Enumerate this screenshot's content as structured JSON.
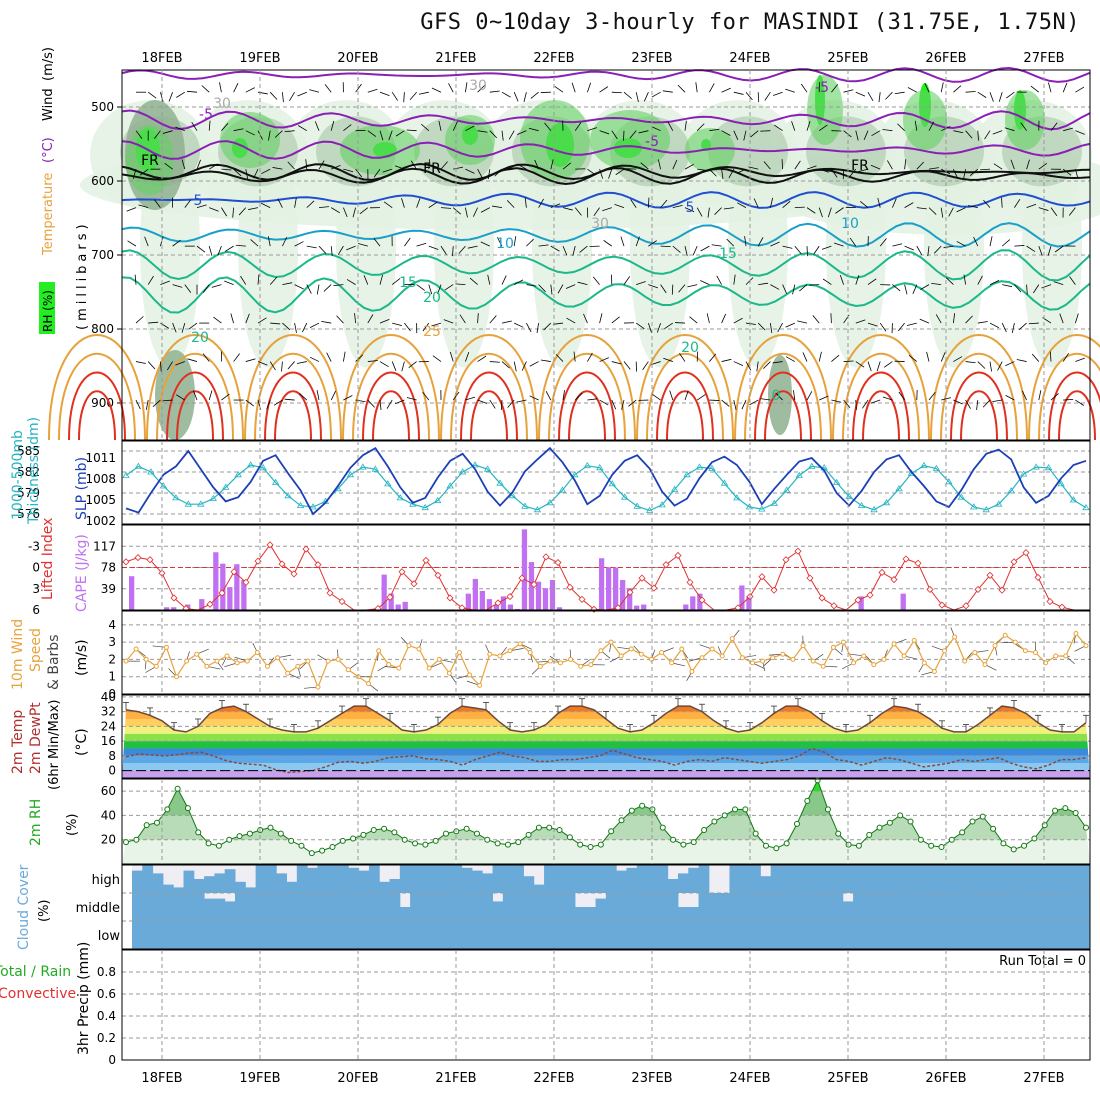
{
  "title": "GFS 0~10day 3-hourly for MASINDI (31.75E, 1.75N)",
  "dates": [
    "18FEB",
    "19FEB",
    "20FEB",
    "21FEB",
    "22FEB",
    "23FEB",
    "24FEB",
    "25FEB",
    "26FEB",
    "27FEB"
  ],
  "colors": {
    "frame": "#000000",
    "grid": "#999999",
    "rh_light": "#e3f1e3",
    "rh_mid": "#b9d3b9",
    "rh_dark": "#8fb08f",
    "rh_bright": "#22ee22",
    "temp_purple": "#8a1fb5",
    "temp_blue": "#1f4fd0",
    "temp_cyan": "#1aa0c8",
    "temp_teal": "#1ab88a",
    "temp_orange": "#e6a23c",
    "temp_red": "#e0301e",
    "slp": "#1c3fb8",
    "thickness": "#26b5c2",
    "li": "#e33030",
    "cape": "#c070f0",
    "wind10": "#e8a33c",
    "rh2m": "#22aa22",
    "cloud": "#6aaad8",
    "precip_green": "#22aa22",
    "precip_red": "#e33030"
  },
  "panel_labels": {
    "upper": {
      "rh": "RH (%)",
      "temperature": "Temperature",
      "temp_unit": "(°C)",
      "wind": "Wind",
      "wind_unit": "(m/s)",
      "pressure": "(millibars)"
    },
    "thickness": {
      "line1": "1000-500mb",
      "line2": "Thickness (dm)",
      "slp": "SLP (mb)"
    },
    "cape": {
      "li": "Lifted Index",
      "cape": "CAPE (J/kg)"
    },
    "wind10": {
      "line1": "10m Wind",
      "line2": "Speed",
      "line3": "& Barbs",
      "unit": "(m/s)"
    },
    "temp2m": {
      "line1": "2m Temp",
      "line2": "2m DewPt",
      "line3": "(6hr Min/Max)",
      "unit": "(°C)"
    },
    "rh2m": {
      "line1": "2m RH",
      "unit": "(%)"
    },
    "cloud": {
      "line1": "Cloud Cover",
      "unit": "(%)",
      "high": "high",
      "middle": "middle",
      "low": "low"
    },
    "precip": {
      "line1": "Total / Rain",
      "line2": "Convective",
      "line3": "3hr Precip",
      "unit": "(mm)",
      "run_total": "Run Total = 0"
    }
  },
  "chart_data": [
    {
      "type": "heatmap",
      "name": "upper-air",
      "y_ticks": [
        "500",
        "600",
        "700",
        "800",
        "900"
      ],
      "ylim": [
        450,
        950
      ],
      "contour_labels": [
        "-5",
        "-5",
        "-5",
        "FR",
        "FR",
        "FR",
        "5",
        "5",
        "10",
        "10",
        "15",
        "15",
        "20",
        "20",
        "20",
        "25",
        "30",
        "30",
        "30",
        "0"
      ],
      "temperature_levels": [
        -5,
        0,
        5,
        10,
        15,
        20,
        25,
        30
      ]
    },
    {
      "type": "line",
      "name": "thickness-slp",
      "y_ticks_left": [
        "585",
        "582",
        "579",
        "576"
      ],
      "y_ticks_right": [
        "1011",
        "1008",
        "1005",
        "1002"
      ],
      "ylim_left": [
        575,
        586
      ],
      "ylim_right": [
        1002,
        1013
      ],
      "series": [
        {
          "name": "SLP (mb)",
          "values": [
            1003.8,
            1003.2,
            1006,
            1008.6,
            1009.8,
            1012,
            1009.4,
            1006.8,
            1004.8,
            1005.4,
            1007.6,
            1010.6,
            1011.4,
            1008.8,
            1006.4,
            1003,
            1004.6,
            1007,
            1009.6,
            1011.4,
            1012.4,
            1009.8,
            1006.8,
            1004.6,
            1005.3,
            1008.2,
            1010.6,
            1011.6,
            1009.4,
            1006.2,
            1004.2,
            1006.1,
            1009.1,
            1010.8,
            1012.4,
            1010.4,
            1007.8,
            1004.4,
            1005.6,
            1008.6,
            1010.6,
            1011.4,
            1009.5,
            1006.2,
            1004.2,
            1005.2,
            1008.1,
            1010.4,
            1011.2,
            1010,
            1007.6,
            1004.4,
            1006.6,
            1008.6,
            1010.5,
            1011,
            1009.2,
            1006,
            1004.2,
            1006.3,
            1009,
            1010.8,
            1011.4,
            1009,
            1007,
            1004.8,
            1004,
            1006.4,
            1009.4,
            1011.6,
            1012.2,
            1010.8,
            1006.8,
            1004.6,
            1005.6,
            1008.1,
            1010,
            1010.6
          ]
        },
        {
          "name": "Thickness (dm)",
          "values": [
            581.5,
            582.8,
            582,
            580,
            578.3,
            577.4,
            577.4,
            578.2,
            579.8,
            581.6,
            583,
            582.6,
            580.5,
            578.6,
            577.2,
            577,
            577.8,
            579.6,
            581.6,
            582.7,
            582.4,
            580.3,
            578.3,
            577.4,
            576.9,
            577.9,
            580,
            582,
            583,
            582.4,
            580.4,
            578.6,
            577.1,
            576.6,
            577.6,
            579.4,
            581.6,
            582.9,
            582.6,
            580.3,
            578.4,
            577.1,
            576.5,
            577.3,
            579.5,
            581.6,
            582.7,
            582.5,
            580.4,
            578.3,
            577,
            576.7,
            577.5,
            579.4,
            581.5,
            582.8,
            582.6,
            580.5,
            578.5,
            577.2,
            576.6,
            577.6,
            579.6,
            581.8,
            582.9,
            582.5,
            580.6,
            578.4,
            577,
            576.6,
            577.4,
            579.3,
            581.7,
            582.7,
            582.6,
            580.3,
            578,
            576.9
          ]
        }
      ]
    },
    {
      "type": "bar",
      "name": "cape-li",
      "y_ticks_left": [
        "-3",
        "0",
        "3",
        "6"
      ],
      "y_ticks_right": [
        "117",
        "78",
        "39"
      ],
      "ylim_li": [
        -6,
        6
      ],
      "ylim_cape": [
        0,
        156
      ],
      "cape": [
        0,
        62,
        0,
        0,
        0,
        0,
        5,
        5,
        0,
        10,
        0,
        20,
        0,
        106,
        85,
        42,
        84,
        55,
        0,
        0,
        0,
        0,
        0,
        0,
        0,
        0,
        0,
        0,
        0,
        0,
        0,
        0,
        0,
        0,
        0,
        0,
        0,
        65,
        30,
        10,
        15,
        0,
        0,
        0,
        0,
        0,
        0,
        0,
        0,
        30,
        57,
        35,
        20,
        10,
        25,
        10,
        2,
        148,
        88,
        52,
        40,
        55,
        5,
        0,
        0,
        0,
        0,
        0,
        95,
        78,
        78,
        55,
        40,
        8,
        10,
        0,
        0,
        0,
        0,
        0,
        10,
        25,
        30,
        0,
        0,
        0,
        0,
        0,
        45,
        25,
        0,
        0,
        0,
        0,
        0,
        0,
        0,
        0,
        0,
        0,
        0,
        0,
        0,
        0,
        0,
        25,
        0,
        0,
        0,
        0,
        0,
        30,
        0,
        0,
        0,
        0,
        0,
        0,
        0,
        0,
        0,
        0,
        0,
        0,
        0,
        0,
        0,
        0,
        0,
        0,
        0,
        0,
        0,
        0,
        0,
        0,
        0,
        0
      ],
      "lifted_index": [
        -0.8,
        -1.4,
        -1.1,
        0.8,
        4.3,
        5.8,
        6.8,
        5.2,
        3.6,
        0.6,
        2.1,
        -0.9,
        -3.2,
        -0.5,
        0.9,
        -2.6,
        -0.4,
        3.6,
        4.8,
        6.5,
        7,
        5.8,
        4.2,
        0.6,
        2.3,
        -1,
        1.1,
        4.3,
        5.7,
        6.5,
        6.8,
        5,
        4.1,
        1.5,
        2.4,
        -1.5,
        -0.7,
        2.8,
        4.5,
        5.9,
        7,
        5.7,
        3.5,
        1.5,
        2.9,
        -0.4,
        -1.7,
        2.1,
        4.6,
        6.8,
        7,
        5.7,
        4.1,
        1.3,
        3.2,
        -1.1,
        -2.3,
        1.5,
        4.3,
        5.4,
        6.3,
        4.6,
        3.9,
        0.7,
        1.7,
        -1.2,
        -0.6,
        3.1,
        5.3,
        6.4,
        5.4,
        3.1,
        1.1,
        3.2,
        -0.8,
        -2.1,
        1.4,
        4.8,
        5.6,
        6.2,
        6.4
      ]
    },
    {
      "type": "line",
      "name": "wind-10m",
      "y_ticks": [
        "4",
        "3",
        "2",
        "1",
        "0"
      ],
      "ylim": [
        0,
        4.8
      ],
      "series": [
        {
          "name": "Speed",
          "values": [
            1.9,
            2.6,
            2,
            1.6,
            2.7,
            1,
            1.9,
            2.3,
            1.6,
            1.9,
            2.2,
            1.8,
            1.9,
            2.4,
            1.6,
            2.1,
            1.2,
            1.6,
            1.9,
            0.4,
            1.9,
            2,
            1.4,
            1,
            0.6,
            2.5,
            1.7,
            1.5,
            2.8,
            2.6,
            1.5,
            2,
            1.2,
            2.4,
            1.1,
            0.5,
            2.3,
            2.2,
            2.5,
            2.9,
            2.4,
            1.6,
            1.9,
            1.8,
            2,
            1.6,
            1.7,
            2.5,
            3,
            2.2,
            2.6,
            2.3,
            2,
            2.4,
            1.8,
            2.6,
            1.3,
            2.1,
            2.6,
            2.2,
            3.2,
            2.1,
            1.8,
            1.9,
            2.1,
            2.3,
            2,
            2.8,
            1.9,
            1.6,
            2.7,
            3,
            1.8,
            2.2,
            1.7,
            2,
            2.9,
            2.2,
            3.1,
            1.8,
            1.3,
            2.5,
            3.3,
            1.9,
            2.4,
            1.7,
            2.8,
            3.4,
            3,
            2.5,
            2.4,
            1.8,
            2.2,
            2.2,
            3.5,
            2.8
          ]
        }
      ]
    },
    {
      "type": "area",
      "name": "temp-2m",
      "y_ticks": [
        "40",
        "32",
        "24",
        "16",
        "8",
        "0"
      ],
      "ylim": [
        -4,
        41
      ],
      "series": [
        {
          "name": "2m Temp",
          "values": [
            33,
            32,
            30,
            27,
            22,
            21,
            24,
            31,
            34,
            35,
            32,
            28,
            24,
            22,
            21,
            21,
            23,
            27,
            31,
            35,
            35,
            31,
            27,
            22,
            21,
            22,
            25,
            31,
            35,
            34,
            33,
            27,
            22,
            21,
            22,
            25,
            31,
            35,
            35,
            33,
            28,
            23,
            21,
            22,
            26,
            31,
            35,
            35,
            32,
            27,
            23,
            21,
            22,
            26,
            31,
            35,
            35,
            32,
            27,
            23,
            21,
            22,
            26,
            31,
            35,
            34,
            32,
            28,
            23,
            21,
            21,
            25,
            30,
            35,
            34,
            31,
            26,
            22,
            21,
            21,
            26
          ]
        },
        {
          "name": "2m DewPt",
          "values": [
            7.5,
            9,
            8.5,
            8,
            8.5,
            9.5,
            10,
            8,
            5.5,
            4,
            3.5,
            3,
            0.5,
            -1,
            -0.5,
            0,
            2,
            4.5,
            5,
            4,
            5,
            7,
            7.5,
            8,
            6.5,
            6,
            5,
            3,
            6,
            8,
            10,
            8,
            7,
            5,
            5,
            6,
            6,
            7,
            8,
            11,
            9,
            7,
            6,
            5,
            3,
            5,
            6,
            5,
            7,
            6,
            5,
            4,
            5,
            6,
            8,
            12,
            10,
            6,
            5,
            3,
            5,
            7,
            6,
            4,
            2,
            3,
            4,
            6,
            5,
            6,
            7,
            4,
            2,
            1,
            3,
            6,
            6,
            7
          ]
        }
      ]
    },
    {
      "type": "area",
      "name": "rh-2m",
      "y_ticks": [
        "60",
        "40",
        "20"
      ],
      "ylim": [
        0,
        70
      ],
      "series": [
        {
          "name": "2m RH",
          "values": [
            18,
            20,
            32,
            34,
            45,
            62,
            46,
            26,
            17,
            15,
            20,
            23,
            25,
            28,
            30,
            25,
            19,
            15,
            9,
            11,
            14,
            19,
            21,
            24,
            28,
            29,
            26,
            20,
            17,
            16,
            19,
            25,
            27,
            29,
            25,
            20,
            17,
            16,
            18,
            24,
            30,
            30,
            28,
            22,
            16,
            14,
            16,
            27,
            36,
            44,
            48,
            45,
            30,
            20,
            16,
            18,
            28,
            35,
            40,
            45,
            45,
            25,
            15,
            13,
            17,
            33,
            52,
            69,
            45,
            25,
            16,
            15,
            24,
            30,
            34,
            40,
            35,
            20,
            15,
            14,
            20,
            26,
            35,
            39,
            29,
            17,
            12,
            15,
            21,
            32,
            44,
            46,
            42,
            30
          ]
        }
      ]
    },
    {
      "type": "bar",
      "name": "cloud-cover",
      "categories": [
        "high",
        "middle",
        "low"
      ],
      "ylim": [
        0,
        100
      ],
      "high": [
        80,
        100,
        70,
        30,
        20,
        80,
        50,
        60,
        70,
        85,
        40,
        20,
        100,
        100,
        70,
        40,
        100,
        90,
        100,
        100,
        100,
        90,
        80,
        100,
        40,
        50,
        100,
        100,
        100,
        100,
        100,
        100,
        90,
        80,
        70,
        100,
        100,
        100,
        60,
        30,
        100,
        100,
        100,
        100,
        100,
        100,
        100,
        80,
        90,
        100,
        100,
        100,
        50,
        70,
        90,
        100,
        0,
        0,
        100,
        100,
        100,
        60,
        100,
        100,
        100,
        100,
        100,
        100,
        100,
        100,
        100,
        100,
        100,
        100,
        100,
        100,
        100,
        100,
        100,
        100,
        100,
        100,
        100,
        100,
        100,
        100,
        100,
        100,
        100,
        100,
        100,
        100,
        100
      ],
      "middle": [
        100,
        100,
        100,
        100,
        100,
        100,
        100,
        80,
        80,
        70,
        100,
        100,
        100,
        100,
        100,
        100,
        100,
        100,
        100,
        100,
        100,
        100,
        100,
        100,
        100,
        100,
        50,
        100,
        100,
        100,
        100,
        100,
        100,
        100,
        100,
        70,
        100,
        100,
        100,
        100,
        100,
        100,
        100,
        50,
        50,
        80,
        100,
        100,
        100,
        100,
        100,
        100,
        100,
        50,
        50,
        100,
        100,
        100,
        100,
        100,
        100,
        100,
        100,
        100,
        100,
        100,
        100,
        100,
        100,
        70,
        100,
        100,
        100,
        100,
        100,
        100,
        100,
        100,
        100,
        100,
        100,
        100,
        100,
        100,
        100,
        100,
        100,
        100,
        100,
        100,
        100,
        100,
        100
      ],
      "low": [
        0,
        0,
        0,
        0,
        0,
        0,
        0,
        0,
        0,
        0,
        0,
        0,
        0,
        0,
        0,
        0,
        0,
        0,
        0,
        0,
        0,
        0,
        0,
        0,
        0,
        0,
        0,
        0,
        0,
        0,
        0,
        0,
        0,
        0,
        0,
        0,
        0,
        0,
        0,
        0,
        0,
        0,
        0,
        0,
        0,
        0,
        0,
        0,
        0,
        0,
        0,
        0,
        0,
        0,
        0,
        0,
        0,
        0,
        0,
        0,
        0,
        0,
        0,
        0,
        0,
        0,
        0,
        0,
        0,
        0,
        0,
        0,
        0,
        0,
        0,
        0,
        0,
        0,
        0,
        0,
        0,
        0,
        0,
        0,
        0,
        0,
        0,
        0,
        0,
        0,
        0,
        0,
        0
      ]
    },
    {
      "type": "bar",
      "name": "precip-3hr",
      "y_ticks": [
        "0.8",
        "0.6",
        "0.4",
        "0.2",
        "0"
      ],
      "ylim": [
        0,
        1
      ],
      "values": []
    }
  ]
}
